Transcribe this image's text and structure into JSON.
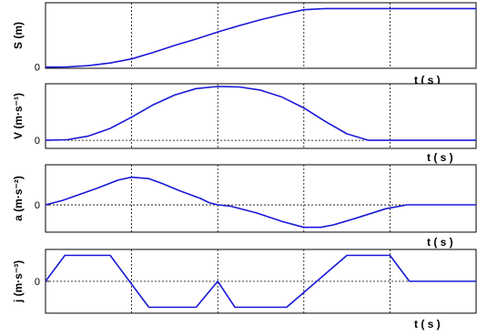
{
  "chart_data": [
    {
      "type": "line",
      "ylabel": "S (m)",
      "xlabel": "t ( s )",
      "y_zero_label": "0",
      "x_range": [
        0,
        1
      ],
      "y_range": [
        -0.02,
        1.1
      ],
      "x_grid_lines": [
        0.2,
        0.4,
        0.6,
        0.8
      ],
      "grid": true,
      "series": [
        {
          "color": "#1818d8",
          "x": [
            0,
            0.05,
            0.1,
            0.15,
            0.2,
            0.25,
            0.3,
            0.35,
            0.4,
            0.45,
            0.5,
            0.55,
            0.6,
            0.65,
            0.7,
            0.75,
            0.8,
            0.85,
            0.9,
            0.95,
            1.0
          ],
          "y": [
            0,
            0.003,
            0.025,
            0.07,
            0.14,
            0.25,
            0.37,
            0.48,
            0.6,
            0.71,
            0.81,
            0.9,
            0.98,
            1.0,
            1.0,
            1.0,
            1.0,
            1.0,
            1.0,
            1.0,
            1.0
          ]
        }
      ]
    },
    {
      "type": "line",
      "ylabel": "V (m·s⁻¹)",
      "xlabel": "t ( s )",
      "y_zero_label": "0",
      "x_range": [
        0,
        1
      ],
      "y_range": [
        -0.15,
        1.05
      ],
      "y_zero_gridline": true,
      "x_grid_lines": [
        0.2,
        0.4,
        0.6,
        0.8
      ],
      "grid": true,
      "series": [
        {
          "color": "#1818d8",
          "x": [
            0,
            0.05,
            0.1,
            0.15,
            0.2,
            0.25,
            0.3,
            0.35,
            0.4,
            0.45,
            0.5,
            0.55,
            0.6,
            0.65,
            0.7,
            0.75,
            0.8,
            0.85,
            0.9,
            1.0
          ],
          "y": [
            0,
            0.01,
            0.08,
            0.22,
            0.43,
            0.66,
            0.84,
            0.96,
            1.0,
            0.99,
            0.93,
            0.8,
            0.6,
            0.35,
            0.12,
            0.0,
            0,
            0,
            0,
            0
          ]
        }
      ]
    },
    {
      "type": "line",
      "ylabel": "a (m·s⁻²)",
      "xlabel": "t ( s )",
      "y_zero_label": "0",
      "x_range": [
        0,
        1
      ],
      "y_range": [
        -0.85,
        1.25
      ],
      "y_zero_gridline": true,
      "x_grid_lines": [
        0.2,
        0.4,
        0.6,
        0.8
      ],
      "grid": true,
      "series": [
        {
          "color": "#1818d8",
          "x": [
            0,
            0.04,
            0.12,
            0.17,
            0.2,
            0.24,
            0.27,
            0.31,
            0.36,
            0.38,
            0.4,
            0.43,
            0.49,
            0.55,
            0.6,
            0.64,
            0.67,
            0.72,
            0.79,
            0.84,
            1.0
          ],
          "y": [
            0,
            0.14,
            0.52,
            0.78,
            0.86,
            0.82,
            0.67,
            0.45,
            0.2,
            0.07,
            0.0,
            -0.04,
            -0.25,
            -0.52,
            -0.7,
            -0.7,
            -0.62,
            -0.42,
            -0.12,
            0.0,
            0.0
          ]
        }
      ]
    },
    {
      "type": "line",
      "ylabel": "j (m·s⁻³)",
      "xlabel": "t ( s )",
      "y_zero_label": "0",
      "x_range": [
        0,
        1
      ],
      "y_range": [
        -1.23,
        1.23
      ],
      "y_zero_gridline": true,
      "x_grid_lines": [
        0.2,
        0.4,
        0.6,
        0.8
      ],
      "grid": true,
      "series": [
        {
          "color": "#1818d8",
          "x": [
            0,
            0.045,
            0.15,
            0.24,
            0.35,
            0.4,
            0.44,
            0.56,
            0.63,
            0.7,
            0.8,
            0.845,
            1.0
          ],
          "y": [
            0,
            1,
            1,
            -1,
            -1,
            0,
            -1,
            -1,
            0,
            1,
            1,
            0,
            0
          ]
        }
      ]
    }
  ]
}
